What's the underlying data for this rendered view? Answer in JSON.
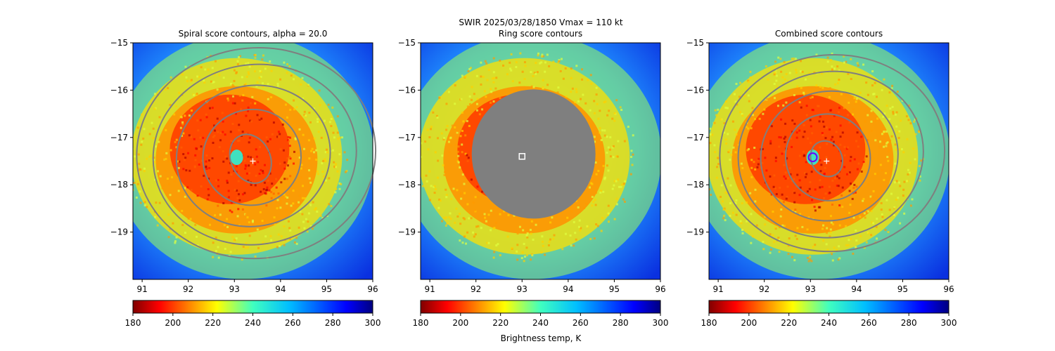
{
  "suptitle": "SWIR  2025/03/28/1850    Vmax = 110 kt",
  "colorbar_label": "Brightness temp, K",
  "colors": {
    "contour": "#7f7f7f",
    "marker": "#ffffff",
    "center_circle": "#6a00ff"
  },
  "chart_data": [
    {
      "type": "heatmap",
      "title": "Spiral score contours, alpha = 20.0",
      "xlim": [
        90.8,
        96.0
      ],
      "ylim": [
        -20.0,
        -15.0
      ],
      "xticks": [
        91,
        92,
        93,
        94,
        95,
        96
      ],
      "yticks": [
        -15,
        -16,
        -17,
        -18,
        -19
      ],
      "center_marker": {
        "shape": "plus",
        "x": 93.4,
        "y": -17.5
      },
      "colormap": "jet_r",
      "colorbar": {
        "min": 180,
        "max": 300,
        "ticks": [
          180,
          200,
          220,
          240,
          260,
          280,
          300
        ]
      }
    },
    {
      "type": "heatmap",
      "title": "Ring score contours",
      "xlim": [
        90.8,
        96.0
      ],
      "ylim": [
        -20.0,
        -15.0
      ],
      "xticks": [
        91,
        92,
        93,
        94,
        95,
        96
      ],
      "yticks": [
        -15,
        -16,
        -17,
        -18,
        -19
      ],
      "center_marker": {
        "shape": "square",
        "x": 93.0,
        "y": -17.4
      },
      "colormap": "jet_r",
      "colorbar": {
        "min": 180,
        "max": 300,
        "ticks": [
          180,
          200,
          220,
          240,
          260,
          280,
          300
        ]
      }
    },
    {
      "type": "heatmap",
      "title": "Combined score contours",
      "xlim": [
        90.8,
        96.0
      ],
      "ylim": [
        -20.0,
        -15.0
      ],
      "xticks": [
        91,
        92,
        93,
        94,
        95,
        96
      ],
      "yticks": [
        -15,
        -16,
        -17,
        -18,
        -19
      ],
      "center_marker": {
        "shape": "plus",
        "x": 93.35,
        "y": -17.5
      },
      "center_circle": {
        "x": 93.05,
        "y": -17.42
      },
      "colormap": "jet_r",
      "colorbar": {
        "min": 180,
        "max": 300,
        "ticks": [
          180,
          200,
          220,
          240,
          260,
          280,
          300
        ]
      }
    }
  ]
}
